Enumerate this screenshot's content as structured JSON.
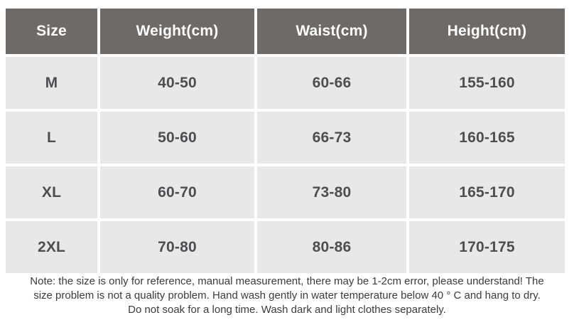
{
  "table": {
    "headers": [
      "Size",
      "Weight(cm)",
      "Waist(cm)",
      "Height(cm)"
    ],
    "rows": [
      [
        "M",
        "40-50",
        "60-66",
        "155-160"
      ],
      [
        "L",
        "50-60",
        "66-73",
        "160-165"
      ],
      [
        "XL",
        "60-70",
        "73-80",
        "165-170"
      ],
      [
        "2XL",
        "70-80",
        "80-86",
        "170-175"
      ]
    ]
  },
  "note": {
    "lines": [
      "Note: the size is only for reference, manual measurement, there may be 1-2cm error, please understand! The",
      "size problem is not a quality problem. Hand wash gently in water temperature below 40 ° C and hang to dry.",
      "Do not soak for a long time. Wash dark and light clothes separately."
    ]
  },
  "colors": {
    "page_bg": "#ffffff",
    "header_bg": "#6e6a67",
    "header_text": "#ffffff",
    "cell_bg": "#e9e8e8",
    "cell_text": "#4c4e51",
    "note_text": "#3c3c3c"
  }
}
